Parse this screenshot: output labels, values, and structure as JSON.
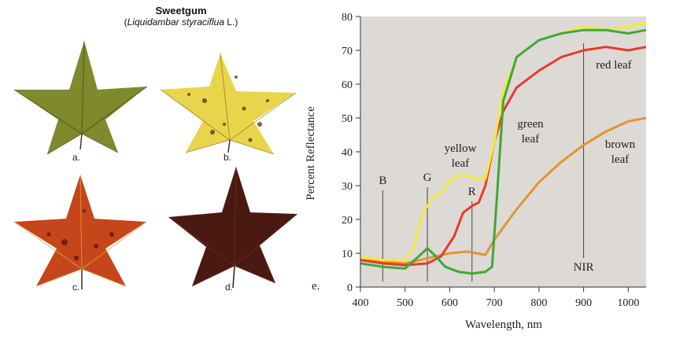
{
  "figure": {
    "title": "Sweetgum",
    "species_italic": "Liquidambar styraciflua",
    "species_author": "L.",
    "leaves": [
      {
        "label": "a.",
        "color": "#7e8a2c"
      },
      {
        "label": "b.",
        "color": "#e8d54a"
      },
      {
        "label": "c.",
        "color": "#c4461a"
      },
      {
        "label": "d.",
        "color": "#4a1a12"
      }
    ],
    "panel_label": "e."
  },
  "chart_data": {
    "type": "line",
    "xlabel": "Wavelength, nm",
    "ylabel": "Percent Reflectance",
    "xlim": [
      400,
      1040
    ],
    "ylim": [
      0,
      80
    ],
    "xticks": [
      400,
      500,
      600,
      700,
      800,
      900,
      1000
    ],
    "yticks": [
      0,
      10,
      20,
      30,
      40,
      50,
      60,
      70,
      80
    ],
    "band_markers": [
      {
        "label": "B",
        "x": 450
      },
      {
        "label": "G",
        "x": 550
      },
      {
        "label": "R",
        "x": 650
      },
      {
        "label": "NIR",
        "x": 900
      }
    ],
    "series": [
      {
        "name": "brown leaf",
        "label_lines": [
          "brown",
          "leaf"
        ],
        "color": "#e0952e",
        "x": [
          400,
          450,
          500,
          550,
          600,
          640,
          660,
          680,
          700,
          750,
          800,
          850,
          900,
          950,
          1000,
          1040
        ],
        "y": [
          8,
          7.5,
          7,
          8.5,
          10,
          10.5,
          10,
          9.5,
          14,
          23,
          31,
          37,
          42,
          46,
          49,
          50
        ]
      },
      {
        "name": "red leaf",
        "label_lines": [
          "red leaf"
        ],
        "color": "#e83a2a",
        "x": [
          400,
          450,
          500,
          550,
          580,
          610,
          630,
          650,
          665,
          680,
          700,
          720,
          750,
          800,
          850,
          900,
          950,
          1000,
          1040
        ],
        "y": [
          8,
          7,
          6.5,
          7,
          9,
          15,
          22,
          24,
          25,
          30,
          43,
          52,
          59,
          64,
          68,
          70,
          71,
          70,
          71
        ]
      },
      {
        "name": "yellow leaf",
        "label_lines": [
          "yellow",
          "leaf"
        ],
        "color": "#f3ea3a",
        "x": [
          400,
          450,
          500,
          520,
          540,
          560,
          580,
          600,
          620,
          640,
          660,
          680,
          700,
          720,
          750,
          800,
          850,
          900,
          950,
          1000,
          1040
        ],
        "y": [
          9,
          8,
          8,
          12,
          22,
          26,
          28,
          31,
          33,
          33,
          32,
          32,
          43,
          58,
          68,
          73,
          75,
          77,
          76,
          77,
          78
        ]
      },
      {
        "name": "green leaf",
        "label_lines": [
          "green",
          "leaf"
        ],
        "color": "#3ea83a",
        "x": [
          400,
          450,
          500,
          530,
          550,
          570,
          590,
          620,
          650,
          680,
          695,
          705,
          720,
          750,
          800,
          850,
          900,
          950,
          1000,
          1040
        ],
        "y": [
          7,
          6,
          5.5,
          9,
          11.5,
          9,
          6,
          4.5,
          4,
          4.5,
          6,
          25,
          55,
          68,
          73,
          75,
          76,
          76,
          75,
          76
        ]
      }
    ]
  }
}
